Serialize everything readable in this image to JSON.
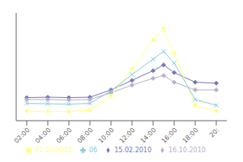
{
  "chart_data": {
    "type": "line",
    "x": [
      2,
      4,
      6,
      8,
      10,
      12,
      14,
      15,
      16,
      18,
      20
    ],
    "xlim": [
      1,
      21
    ],
    "xticks": [
      {
        "value": 2,
        "label": "02:00"
      },
      {
        "value": 4,
        "label": "04:00"
      },
      {
        "value": 6,
        "label": "06:00"
      },
      {
        "value": 8,
        "label": "08:00"
      },
      {
        "value": 10,
        "label": "10:00"
      },
      {
        "value": 12,
        "label": "12:00"
      },
      {
        "value": 14,
        "label": "14:00"
      },
      {
        "value": 16,
        "label": "16:00"
      },
      {
        "value": 18,
        "label": "18:00"
      },
      {
        "value": 20,
        "label": "20:"
      }
    ],
    "ylim": [
      400,
      960
    ],
    "tick_labels": "x",
    "grid": false,
    "legend": "bottom",
    "series": [
      {
        "name": "15.02.2010",
        "color": "#7878b8",
        "marker": "diamond",
        "values": [
          520,
          522,
          520,
          522,
          560,
          610,
          660,
          690,
          650,
          600,
          595
        ]
      },
      {
        "name": "16.10.2010",
        "color": "#b8b0cc",
        "marker": "diamond",
        "values": [
          510,
          510,
          508,
          510,
          545,
          585,
          620,
          635,
          600,
          560,
          560
        ]
      },
      {
        "name": "01.03.2010",
        "color": "#ffff88",
        "marker": "circle",
        "values": [
          450,
          448,
          448,
          455,
          530,
          670,
          820,
          880,
          750,
          480,
          450
        ]
      },
      {
        "name": "06",
        "color": "#88ccdd",
        "marker": "cross",
        "values": [
          490,
          488,
          486,
          490,
          555,
          640,
          720,
          760,
          700,
          510,
          480
        ]
      }
    ]
  }
}
